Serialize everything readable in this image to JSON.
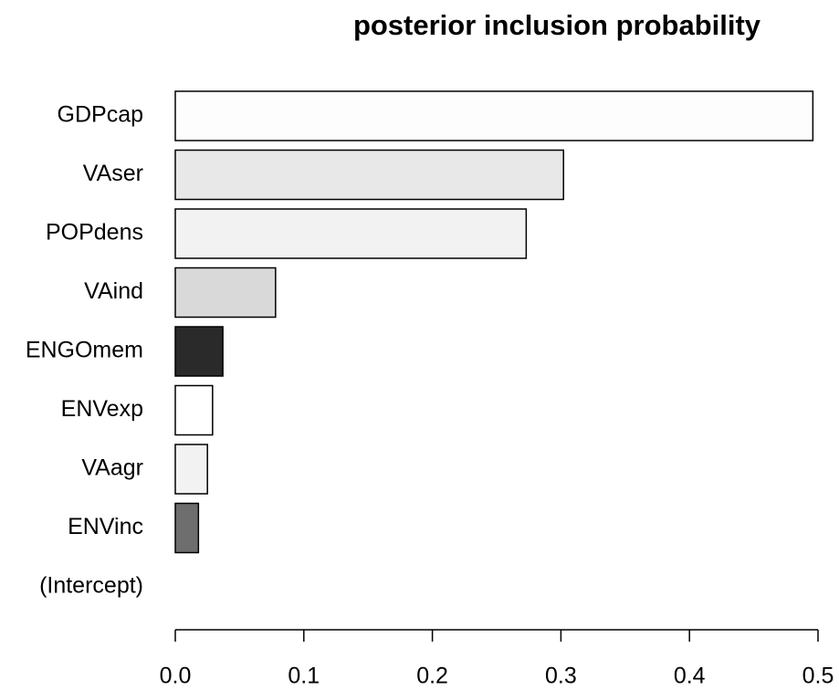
{
  "chart_data": {
    "type": "barh",
    "title": "posterior inclusion probability",
    "categories": [
      "GDPcap",
      "VAser",
      "POPdens",
      "VAind",
      "ENGOmem",
      "ENVexp",
      "VAagr",
      "ENVinc",
      "(Intercept)"
    ],
    "values": [
      0.496,
      0.302,
      0.273,
      0.078,
      0.037,
      0.029,
      0.025,
      0.018,
      0
    ],
    "colors": [
      "#fdfdfd",
      "#e8e8e8",
      "#f2f2f2",
      "#d9d9d9",
      "#2a2a2a",
      "#ffffff",
      "#f2f2f2",
      "#6e6e6e",
      "#ffffff"
    ],
    "xlim": [
      0,
      0.5
    ],
    "xticks": [
      {
        "value": 0,
        "label": "0.0"
      },
      0.1,
      0.2,
      0.3,
      0.4,
      0.5
    ]
  }
}
